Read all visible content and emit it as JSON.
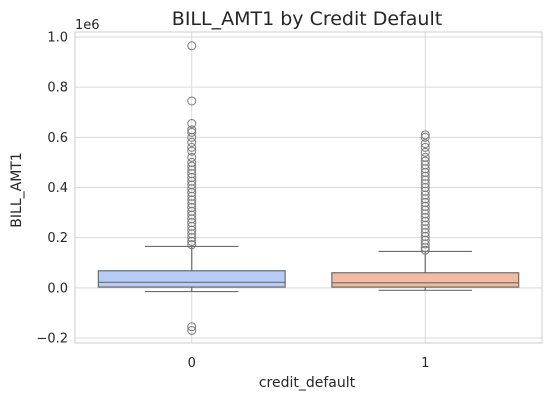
{
  "chart_data": {
    "type": "box",
    "title": "BILL_AMT1 by Credit Default",
    "xlabel": "credit_default",
    "ylabel": "BILL_AMT1",
    "y_scale_note": "1e6",
    "categories": [
      "0",
      "1"
    ],
    "ylim": [
      -0.22,
      1.02
    ],
    "yticks": [
      -0.2,
      0.0,
      0.2,
      0.4,
      0.6,
      0.8,
      1.0
    ],
    "ytick_labels": [
      "−0.2",
      "0.0",
      "0.2",
      "0.4",
      "0.6",
      "0.8",
      "1.0"
    ],
    "grid": true,
    "boxes": [
      {
        "category": "0",
        "whisker_low": -0.015,
        "q1": 0.003,
        "median": 0.022,
        "q3": 0.068,
        "whisker_high": 0.165,
        "color": "#b7cdf7",
        "fliers": [
          0.965,
          0.745,
          0.655,
          0.63,
          0.62,
          0.6,
          0.58,
          0.56,
          0.545,
          0.52,
          0.5,
          0.485,
          0.47,
          0.455,
          0.44,
          0.425,
          0.41,
          0.395,
          0.38,
          0.365,
          0.35,
          0.335,
          0.32,
          0.305,
          0.29,
          0.275,
          0.26,
          0.245,
          0.23,
          0.215,
          0.2,
          0.185,
          0.172,
          -0.155,
          -0.17
        ]
      },
      {
        "category": "1",
        "whisker_low": -0.01,
        "q1": 0.003,
        "median": 0.02,
        "q3": 0.06,
        "whisker_high": 0.145,
        "color": "#f2bca2",
        "fliers": [
          0.61,
          0.6,
          0.575,
          0.56,
          0.54,
          0.52,
          0.505,
          0.49,
          0.475,
          0.46,
          0.445,
          0.43,
          0.415,
          0.4,
          0.385,
          0.37,
          0.355,
          0.34,
          0.325,
          0.31,
          0.295,
          0.28,
          0.265,
          0.25,
          0.235,
          0.22,
          0.205,
          0.19,
          0.175,
          0.16,
          0.15
        ]
      }
    ]
  }
}
